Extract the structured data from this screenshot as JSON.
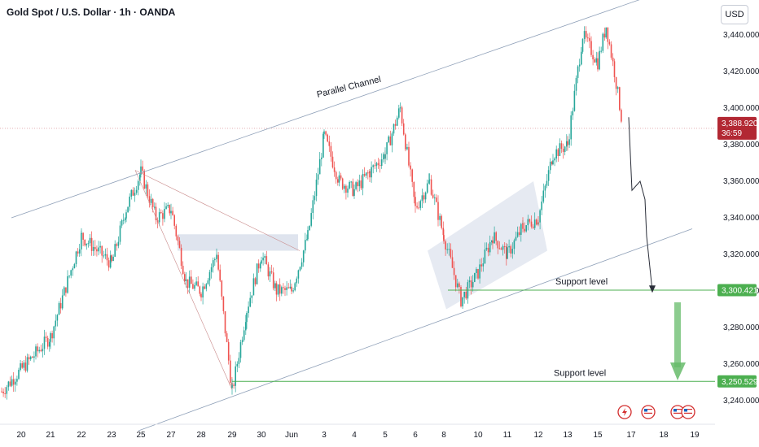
{
  "header": {
    "symbol_title": "Gold Spot / U.S. Dollar · 1h · OANDA",
    "currency_button": "USD"
  },
  "colors": {
    "up": "#26a69a",
    "down": "#ef5350",
    "support_line": "#4caf50",
    "price_tag": "#b22833",
    "arrow": "#66bb6a"
  },
  "price_tag": {
    "price": "3,388.920",
    "countdown": "36:59"
  },
  "support_levels": [
    {
      "label": "Support level",
      "price_label": "3,300.421",
      "value": 3300.421
    },
    {
      "label": "Support level",
      "price_label": "3,250.529",
      "value": 3250.529
    }
  ],
  "annotations": {
    "channel": "Parallel Channel"
  },
  "event_icons": [
    "lightning-icon",
    "us-flag-icon",
    "us-flag-icon",
    "us-flag-icon"
  ],
  "chart_data": {
    "type": "candlestick",
    "title": "Gold Spot / U.S. Dollar · 1h · OANDA",
    "ylim": [
      3230,
      3455
    ],
    "y_ticks": [
      "3,440.000",
      "3,420.000",
      "3,400.000",
      "3,380.000",
      "3,360.000",
      "3,340.000",
      "3,320.000",
      "3,300.000",
      "3,280.000",
      "3,260.000",
      "3,240.000"
    ],
    "y_tick_values": [
      3440,
      3420,
      3400,
      3380,
      3360,
      3340,
      3320,
      3300,
      3280,
      3260,
      3240
    ],
    "x_ticks": [
      "20",
      "21",
      "22",
      "23",
      "25",
      "27",
      "28",
      "29",
      "30",
      "Jun",
      "3",
      "4",
      "5",
      "6",
      "8",
      "10",
      "11",
      "12",
      "13",
      "15",
      "17",
      "18",
      "19"
    ],
    "price_path": [
      [
        "20",
        3245
      ],
      [
        "21",
        3275
      ],
      [
        "22",
        3330
      ],
      [
        "23",
        3315
      ],
      [
        "23",
        3345
      ],
      [
        "25",
        3365
      ],
      [
        "25",
        3340
      ],
      [
        "27",
        3345
      ],
      [
        "27",
        3305
      ],
      [
        "28",
        3300
      ],
      [
        "28",
        3320
      ],
      [
        "29",
        3245
      ],
      [
        "29",
        3290
      ],
      [
        "30",
        3320
      ],
      [
        "30",
        3300
      ],
      [
        "Jun",
        3300
      ],
      [
        "Jun",
        3330
      ],
      [
        "3",
        3385
      ],
      [
        "3",
        3360
      ],
      [
        "4",
        3355
      ],
      [
        "4",
        3365
      ],
      [
        "5",
        3375
      ],
      [
        "5",
        3400
      ],
      [
        "6",
        3345
      ],
      [
        "6",
        3360
      ],
      [
        "8",
        3330
      ],
      [
        "8",
        3295
      ],
      [
        "10",
        3310
      ],
      [
        "10",
        3330
      ],
      [
        "11",
        3320
      ],
      [
        "11",
        3335
      ],
      [
        "12",
        3340
      ],
      [
        "12",
        3375
      ],
      [
        "13",
        3380
      ],
      [
        "13",
        3440
      ],
      [
        "15",
        3425
      ],
      [
        "15",
        3445
      ],
      [
        "15",
        3420
      ],
      [
        "15",
        3390
      ]
    ],
    "projection": [
      [
        "15",
        3395
      ],
      [
        "17",
        3355
      ],
      [
        "17",
        3360
      ],
      [
        "17",
        3350
      ],
      [
        "17",
        3330
      ],
      [
        "17",
        3300
      ]
    ],
    "last_price": 3388.92,
    "support_levels": [
      3300.421,
      3250.529
    ]
  }
}
